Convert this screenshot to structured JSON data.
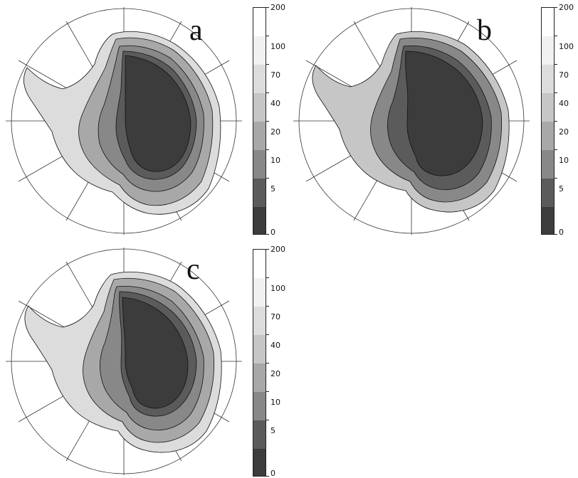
{
  "panels": [
    {
      "id": "a",
      "label": "a"
    },
    {
      "id": "b",
      "label": "b"
    },
    {
      "id": "c",
      "label": "c"
    }
  ],
  "colorbar": {
    "levels": [
      "200",
      "100",
      "70",
      "40",
      "20",
      "10",
      "5",
      "0"
    ],
    "colors": [
      "#ffffff",
      "#f1f1f1",
      "#dcdcdc",
      "#c6c6c6",
      "#a8a8a8",
      "#888888",
      "#5b5b5b",
      "#3c3c3c"
    ]
  }
}
